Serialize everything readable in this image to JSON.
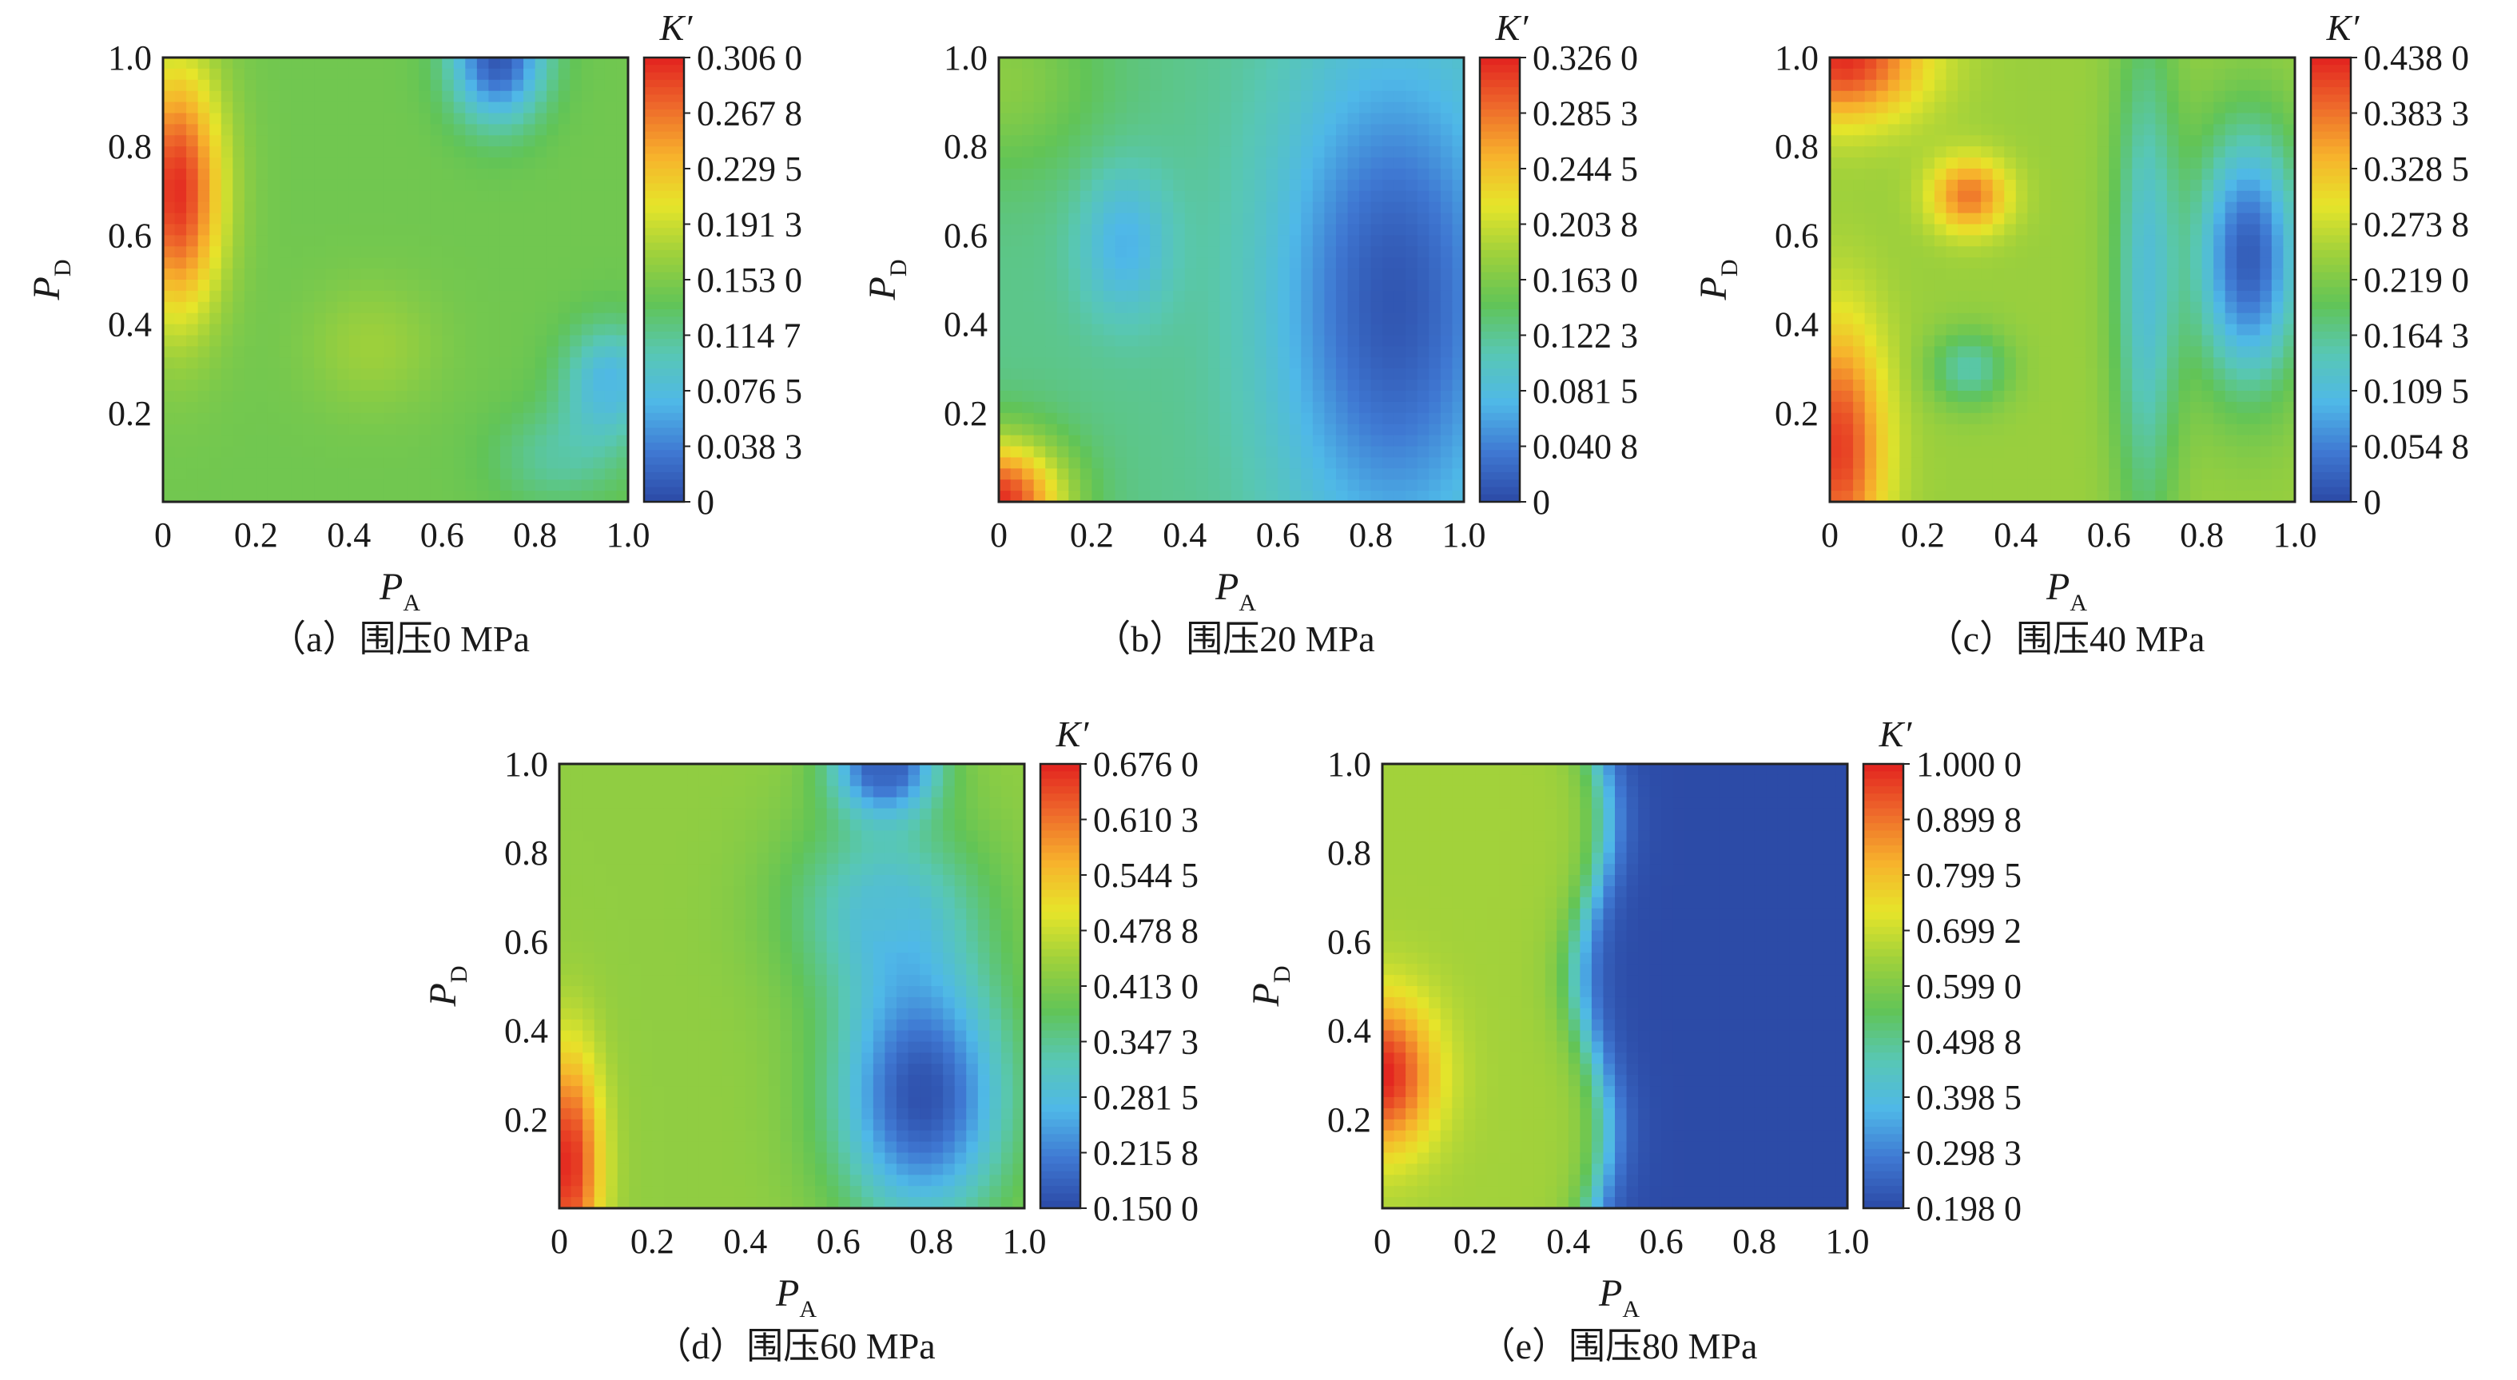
{
  "figure": {
    "panels": [
      {
        "caption": "（a）围压0 MPa",
        "x_axis": {
          "symbol": "P",
          "subscript": "A",
          "ticks": [
            "0",
            "0.2",
            "0.4",
            "0.6",
            "0.8",
            "1.0"
          ]
        },
        "y_axis": {
          "symbol": "P",
          "subscript": "D",
          "ticks": [
            "0.2",
            "0.4",
            "0.6",
            "0.8",
            "1.0"
          ]
        },
        "colorbar": {
          "title": "K′",
          "labels": [
            "0.306 0",
            "0.267 8",
            "0.229 5",
            "0.191 3",
            "0.153 0",
            "0.114 7",
            "0.076 5",
            "0.038 3",
            "0"
          ]
        }
      },
      {
        "caption": "（b）围压20 MPa",
        "x_axis": {
          "symbol": "P",
          "subscript": "A",
          "ticks": [
            "0",
            "0.2",
            "0.4",
            "0.6",
            "0.8",
            "1.0"
          ]
        },
        "y_axis": {
          "symbol": "P",
          "subscript": "D",
          "ticks": [
            "0.2",
            "0.4",
            "0.6",
            "0.8",
            "1.0"
          ]
        },
        "colorbar": {
          "title": "K′",
          "labels": [
            "0.326 0",
            "0.285 3",
            "0.244 5",
            "0.203 8",
            "0.163 0",
            "0.122 3",
            "0.081 5",
            "0.040 8",
            "0"
          ]
        }
      },
      {
        "caption": "（c）围压40 MPa",
        "x_axis": {
          "symbol": "P",
          "subscript": "A",
          "ticks": [
            "0",
            "0.2",
            "0.4",
            "0.6",
            "0.8",
            "1.0"
          ]
        },
        "y_axis": {
          "symbol": "P",
          "subscript": "D",
          "ticks": [
            "0.2",
            "0.4",
            "0.6",
            "0.8",
            "1.0"
          ]
        },
        "colorbar": {
          "title": "K′",
          "labels": [
            "0.438 0",
            "0.383 3",
            "0.328 5",
            "0.273 8",
            "0.219 0",
            "0.164 3",
            "0.109 5",
            "0.054 8",
            "0"
          ]
        }
      },
      {
        "caption": "（d）围压60 MPa",
        "x_axis": {
          "symbol": "P",
          "subscript": "A",
          "ticks": [
            "0",
            "0.2",
            "0.4",
            "0.6",
            "0.8",
            "1.0"
          ]
        },
        "y_axis": {
          "symbol": "P",
          "subscript": "D",
          "ticks": [
            "0.2",
            "0.4",
            "0.6",
            "0.8",
            "1.0"
          ]
        },
        "colorbar": {
          "title": "K′",
          "labels": [
            "0.676 0",
            "0.610 3",
            "0.544 5",
            "0.478 8",
            "0.413 0",
            "0.347 3",
            "0.281 5",
            "0.215 8",
            "0.150 0"
          ]
        }
      },
      {
        "caption": "（e）围压80 MPa",
        "x_axis": {
          "symbol": "P",
          "subscript": "A",
          "ticks": [
            "0",
            "0.2",
            "0.4",
            "0.6",
            "0.8",
            "1.0"
          ]
        },
        "y_axis": {
          "symbol": "P",
          "subscript": "D",
          "ticks": [
            "0.2",
            "0.4",
            "0.6",
            "0.8",
            "1.0"
          ]
        },
        "colorbar": {
          "title": "K′",
          "labels": [
            "1.000 0",
            "0.899 8",
            "0.799 5",
            "0.699 2",
            "0.599 0",
            "0.498 8",
            "0.398 5",
            "0.298 3",
            "0.198 0"
          ]
        }
      }
    ]
  },
  "chart_data": [
    {
      "type": "heatmap",
      "title": "（a）围压0 MPa",
      "xlabel": "P_A",
      "ylabel": "P_D",
      "zlabel": "K′",
      "xlim": [
        0,
        1
      ],
      "ylim": [
        0,
        1
      ],
      "zlim": [
        0,
        0.306
      ],
      "colormap": [
        "#2c4aa6",
        "#3f78d2",
        "#4fb8e8",
        "#58c7b4",
        "#61c457",
        "#9dd03c",
        "#e6e52a",
        "#f7b22c",
        "#ee6a2b",
        "#e2221f"
      ],
      "field_hotspots": [
        {
          "x": 0.03,
          "y": 0.7,
          "value": 0.3,
          "sx": 0.07,
          "sy": 0.2
        },
        {
          "x": 0.72,
          "y": 1.0,
          "value": 0.01,
          "sx": 0.07,
          "sy": 0.1
        },
        {
          "x": 0.96,
          "y": 0.27,
          "value": 0.07,
          "sx": 0.07,
          "sy": 0.09
        },
        {
          "x": 0.85,
          "y": 0.1,
          "value": 0.11,
          "sx": 0.1,
          "sy": 0.08
        },
        {
          "x": 0.45,
          "y": 0.35,
          "value": 0.17,
          "sx": 0.1,
          "sy": 0.1
        }
      ],
      "field_background": 0.145
    },
    {
      "type": "heatmap",
      "title": "（b）围压20 MPa",
      "xlabel": "P_A",
      "ylabel": "P_D",
      "zlabel": "K′",
      "xlim": [
        0,
        1
      ],
      "ylim": [
        0,
        1
      ],
      "zlim": [
        0,
        0.326
      ],
      "colormap": [
        "#2c4aa6",
        "#3f78d2",
        "#4fb8e8",
        "#58c7b4",
        "#61c457",
        "#9dd03c",
        "#e6e52a",
        "#f7b22c",
        "#ee6a2b",
        "#e2221f"
      ],
      "field_hotspots": [
        {
          "x": 0.0,
          "y": 0.0,
          "value": 0.32,
          "sx": 0.1,
          "sy": 0.1
        },
        {
          "x": 0.85,
          "y": 0.45,
          "value": 0.01,
          "sx": 0.18,
          "sy": 0.4
        },
        {
          "x": 0.27,
          "y": 0.58,
          "value": 0.07,
          "sx": 0.07,
          "sy": 0.12
        },
        {
          "x": 0.0,
          "y": 0.95,
          "value": 0.17,
          "sx": 0.15,
          "sy": 0.15
        }
      ],
      "field_background": 0.125
    },
    {
      "type": "heatmap",
      "title": "（c）围压40 MPa",
      "xlabel": "P_A",
      "ylabel": "P_D",
      "zlabel": "K′",
      "xlim": [
        0,
        1
      ],
      "ylim": [
        0,
        1
      ],
      "zlim": [
        0,
        0.438
      ],
      "colormap": [
        "#2c4aa6",
        "#3f78d2",
        "#4fb8e8",
        "#58c7b4",
        "#61c457",
        "#9dd03c",
        "#e6e52a",
        "#f7b22c",
        "#ee6a2b",
        "#e2221f"
      ],
      "field_hotspots": [
        {
          "x": 0.03,
          "y": 1.0,
          "value": 0.43,
          "sx": 0.12,
          "sy": 0.1
        },
        {
          "x": 0.3,
          "y": 0.69,
          "value": 0.38,
          "sx": 0.06,
          "sy": 0.06
        },
        {
          "x": 0.02,
          "y": 0.12,
          "value": 0.42,
          "sx": 0.07,
          "sy": 0.2
        },
        {
          "x": 0.9,
          "y": 0.55,
          "value": 0.02,
          "sx": 0.08,
          "sy": 0.2
        },
        {
          "x": 0.3,
          "y": 0.3,
          "value": 0.15,
          "sx": 0.06,
          "sy": 0.06
        },
        {
          "x": 0.68,
          "y": 0.5,
          "value": 0.12,
          "sx": 0.05,
          "sy": 0.4
        }
      ],
      "field_background": 0.24
    },
    {
      "type": "heatmap",
      "title": "（d）围压60 MPa",
      "xlabel": "P_A",
      "ylabel": "P_D",
      "zlabel": "K′",
      "xlim": [
        0,
        1
      ],
      "ylim": [
        0,
        1
      ],
      "zlim": [
        0.15,
        0.676
      ],
      "colormap": [
        "#2c4aa6",
        "#3f78d2",
        "#4fb8e8",
        "#58c7b4",
        "#61c457",
        "#9dd03c",
        "#e6e52a",
        "#f7b22c",
        "#ee6a2b",
        "#e2221f"
      ],
      "field_hotspots": [
        {
          "x": 0.02,
          "y": 0.1,
          "value": 0.67,
          "sx": 0.05,
          "sy": 0.18
        },
        {
          "x": 0.78,
          "y": 0.25,
          "value": 0.16,
          "sx": 0.13,
          "sy": 0.2
        },
        {
          "x": 0.7,
          "y": 1.0,
          "value": 0.17,
          "sx": 0.08,
          "sy": 0.08
        },
        {
          "x": 0.7,
          "y": 0.68,
          "value": 0.3,
          "sx": 0.15,
          "sy": 0.15
        }
      ],
      "field_background": 0.43
    },
    {
      "type": "heatmap",
      "title": "（e）围压80 MPa",
      "xlabel": "P_A",
      "ylabel": "P_D",
      "zlabel": "K′",
      "xlim": [
        0,
        1
      ],
      "ylim": [
        0,
        1
      ],
      "zlim": [
        0.198,
        1.0
      ],
      "colormap": [
        "#2c4aa6",
        "#3f78d2",
        "#4fb8e8",
        "#58c7b4",
        "#61c457",
        "#9dd03c",
        "#e6e52a",
        "#f7b22c",
        "#ee6a2b",
        "#e2221f"
      ],
      "field_hotspots": [
        {
          "x": 0.0,
          "y": 0.3,
          "value": 1.0,
          "sx": 0.08,
          "sy": 0.12
        }
      ],
      "field_background": 0.65,
      "field_right_region": {
        "x_from": 0.45,
        "value": 0.2
      }
    }
  ]
}
